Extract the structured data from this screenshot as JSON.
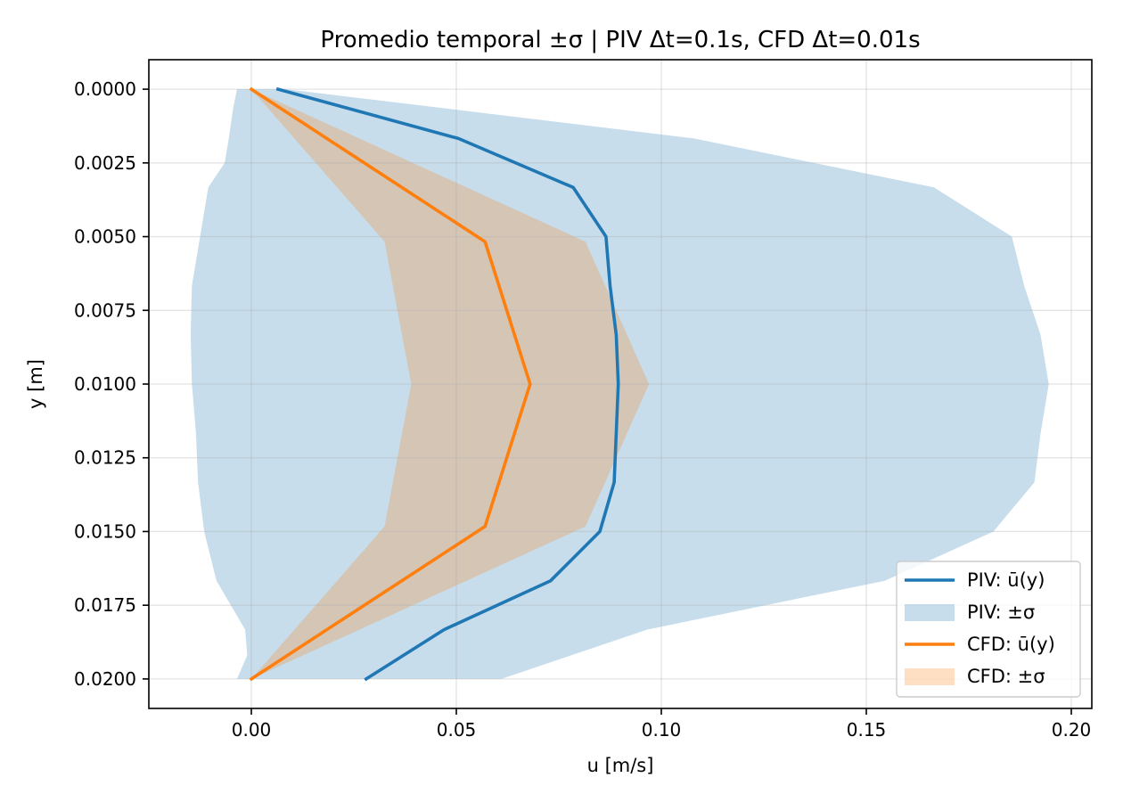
{
  "chart_data": {
    "type": "line",
    "title": "Promedio temporal ±σ | PIV Δt=0.1s, CFD Δt=0.01s",
    "xlabel": "u [m/s]",
    "ylabel": "y [m]",
    "xlim": [
      -0.025,
      0.205
    ],
    "ylim": [
      0.021,
      -0.001
    ],
    "y_inverted": true,
    "grid": true,
    "legend_placement": "lower-right",
    "x_ticks": [
      {
        "value": 0.0,
        "label": "0.00"
      },
      {
        "value": 0.05,
        "label": "0.05"
      },
      {
        "value": 0.1,
        "label": "0.10"
      },
      {
        "value": 0.15,
        "label": "0.15"
      },
      {
        "value": 0.2,
        "label": "0.20"
      }
    ],
    "y_ticks": [
      {
        "value": 0.0,
        "label": "0.0000"
      },
      {
        "value": 0.0025,
        "label": "0.0025"
      },
      {
        "value": 0.005,
        "label": "0.0050"
      },
      {
        "value": 0.0075,
        "label": "0.0075"
      },
      {
        "value": 0.01,
        "label": "0.0100"
      },
      {
        "value": 0.0125,
        "label": "0.0125"
      },
      {
        "value": 0.015,
        "label": "0.0150"
      },
      {
        "value": 0.0175,
        "label": "0.0175"
      },
      {
        "value": 0.02,
        "label": "0.0200"
      }
    ],
    "series": [
      {
        "name": "PIV: ū(y)",
        "kind": "line",
        "color": "#1f77b4",
        "points": [
          [
            0.0065,
            0.0
          ],
          [
            0.0505,
            0.00167
          ],
          [
            0.0785,
            0.00333
          ],
          [
            0.0865,
            0.005
          ],
          [
            0.0875,
            0.00667
          ],
          [
            0.089,
            0.00833
          ],
          [
            0.0895,
            0.01
          ],
          [
            0.089,
            0.01167
          ],
          [
            0.0885,
            0.01333
          ],
          [
            0.085,
            0.015
          ],
          [
            0.073,
            0.01667
          ],
          [
            0.047,
            0.01833
          ],
          [
            0.028,
            0.02
          ]
        ]
      },
      {
        "name": "PIV: ±σ",
        "kind": "band",
        "color": "#1f77b4",
        "opacity": 0.25,
        "lower": [
          [
            -0.0035,
            0.0
          ],
          [
            -0.0045,
            0.0007
          ],
          [
            -0.0055,
            0.00167
          ],
          [
            -0.0065,
            0.0025
          ],
          [
            -0.0105,
            0.00333
          ],
          [
            -0.0125,
            0.005
          ],
          [
            -0.0145,
            0.00667
          ],
          [
            -0.0148,
            0.00833
          ],
          [
            -0.0145,
            0.01
          ],
          [
            -0.0135,
            0.01167
          ],
          [
            -0.013,
            0.01333
          ],
          [
            -0.0115,
            0.015
          ],
          [
            -0.0085,
            0.01667
          ],
          [
            -0.0015,
            0.01833
          ],
          [
            -0.001,
            0.0192
          ],
          [
            -0.0035,
            0.02
          ]
        ],
        "upper": [
          [
            0.0085,
            0.0
          ],
          [
            0.108,
            0.00167
          ],
          [
            0.1665,
            0.00333
          ],
          [
            0.1855,
            0.005
          ],
          [
            0.1885,
            0.00667
          ],
          [
            0.1925,
            0.00833
          ],
          [
            0.1945,
            0.01
          ],
          [
            0.1925,
            0.01167
          ],
          [
            0.191,
            0.01333
          ],
          [
            0.181,
            0.015
          ],
          [
            0.1545,
            0.01667
          ],
          [
            0.0965,
            0.01833
          ],
          [
            0.061,
            0.02
          ]
        ]
      },
      {
        "name": "CFD: ū(y)",
        "kind": "line",
        "color": "#ff7f0e",
        "points": [
          [
            0.0,
            0.0
          ],
          [
            0.057,
            0.00517
          ],
          [
            0.068,
            0.01
          ],
          [
            0.057,
            0.01483
          ],
          [
            0.0,
            0.02
          ]
        ]
      },
      {
        "name": "CFD: ±σ",
        "kind": "band",
        "color": "#ff7f0e",
        "opacity": 0.25,
        "lower": [
          [
            0.0,
            0.0
          ],
          [
            0.0325,
            0.00517
          ],
          [
            0.039,
            0.01
          ],
          [
            0.0325,
            0.01483
          ],
          [
            0.0,
            0.02
          ]
        ],
        "upper": [
          [
            0.0,
            0.0
          ],
          [
            0.0815,
            0.00517
          ],
          [
            0.097,
            0.01
          ],
          [
            0.0815,
            0.01483
          ],
          [
            0.0,
            0.02
          ]
        ]
      }
    ]
  }
}
